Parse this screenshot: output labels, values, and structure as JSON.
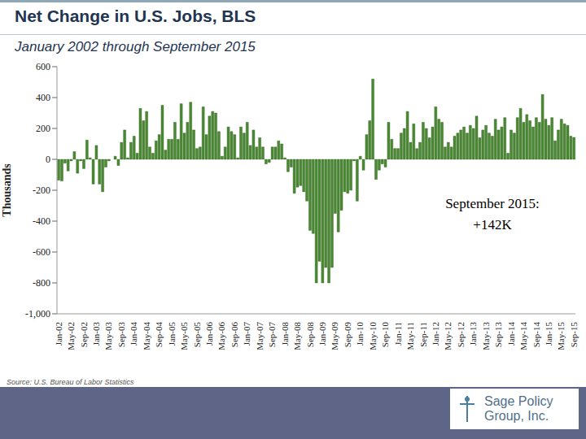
{
  "chart_data": {
    "type": "bar",
    "title": "Net Change in U.S. Jobs, BLS",
    "subtitle": "January 2002 through September 2015",
    "y_label": "Thousands",
    "annotation": [
      "September 2015:",
      "+142K"
    ],
    "source": "Source: U.S. Bureau of Labor Statistics",
    "logo": "Sage Policy Group, Inc.",
    "color": "#4a8a32",
    "categories": [
      "Jan-02",
      null,
      null,
      null,
      "May-02",
      null,
      null,
      null,
      "Sep-02",
      null,
      null,
      null,
      "Jan-03",
      null,
      null,
      null,
      "May-03",
      null,
      null,
      null,
      "Sep-03",
      null,
      null,
      null,
      "Jan-04",
      null,
      null,
      null,
      "May-04",
      null,
      null,
      null,
      "Sep-04",
      null,
      null,
      null,
      "Jan-05",
      null,
      null,
      null,
      "May-05",
      null,
      null,
      null,
      "Sep-05",
      null,
      null,
      null,
      "Jan-06",
      null,
      null,
      null,
      "May-06",
      null,
      null,
      null,
      "Sep-06",
      null,
      null,
      null,
      "Jan-07",
      null,
      null,
      null,
      "May-07",
      null,
      null,
      null,
      "Sep-07",
      null,
      null,
      null,
      "Jan-08",
      null,
      null,
      null,
      "May-08",
      null,
      null,
      null,
      "Sep-08",
      null,
      null,
      null,
      "Jan-09",
      null,
      null,
      null,
      "May-09",
      null,
      null,
      null,
      "Sep-09",
      null,
      null,
      null,
      "Jan-10",
      null,
      null,
      null,
      "May-10",
      null,
      null,
      null,
      "Sep-10",
      null,
      null,
      null,
      "Jan-11",
      null,
      null,
      null,
      "May-11",
      null,
      null,
      null,
      "Sep-11",
      null,
      null,
      null,
      "Jan-12",
      null,
      null,
      null,
      "May-12",
      null,
      null,
      null,
      "Sep-12",
      null,
      null,
      null,
      "Jan-13",
      null,
      null,
      null,
      "May-13",
      null,
      null,
      null,
      "Sep-13",
      null,
      null,
      null,
      "Jan-14",
      null,
      null,
      null,
      "May-14",
      null,
      null,
      null,
      "Sep-14",
      null,
      null,
      null,
      "Jan-15",
      null,
      null,
      null,
      "May-15",
      null,
      null,
      null,
      "Sep-15"
    ],
    "values": [
      -135,
      -140,
      -25,
      -75,
      -10,
      50,
      -90,
      -10,
      -60,
      125,
      10,
      -160,
      90,
      -160,
      -210,
      -50,
      -10,
      0,
      20,
      -40,
      110,
      190,
      10,
      110,
      150,
      40,
      330,
      250,
      310,
      80,
      40,
      120,
      160,
      350,
      60,
      130,
      130,
      240,
      130,
      360,
      170,
      240,
      370,
      190,
      70,
      80,
      340,
      160,
      280,
      310,
      300,
      180,
      20,
      80,
      210,
      180,
      160,
      10,
      210,
      170,
      240,
      90,
      190,
      80,
      140,
      80,
      -30,
      -20,
      80,
      80,
      120,
      100,
      10,
      -80,
      -50,
      -220,
      -180,
      -170,
      -210,
      -270,
      -460,
      -480,
      -800,
      -660,
      -800,
      -700,
      -800,
      -700,
      -350,
      -470,
      -330,
      -210,
      -220,
      -200,
      -10,
      -270,
      20,
      -70,
      160,
      250,
      520,
      -130,
      -70,
      -30,
      -50,
      240,
      130,
      70,
      70,
      170,
      200,
      310,
      110,
      230,
      70,
      110,
      240,
      200,
      140,
      210,
      340,
      260,
      240,
      80,
      110,
      80,
      150,
      170,
      190,
      210,
      170,
      220,
      200,
      280,
      140,
      190,
      220,
      170,
      150,
      260,
      190,
      210,
      270,
      40,
      190,
      170,
      270,
      330,
      240,
      290,
      250,
      210,
      270,
      240,
      420,
      260,
      220,
      270,
      120,
      190,
      260,
      230,
      220,
      150,
      142
    ],
    "ylim": [
      -1000,
      600
    ],
    "yticks": [
      {
        "value": -1000,
        "label": "-1,000"
      },
      -800,
      -600,
      -400,
      -200,
      0,
      200,
      400,
      600
    ],
    "grid": false
  }
}
